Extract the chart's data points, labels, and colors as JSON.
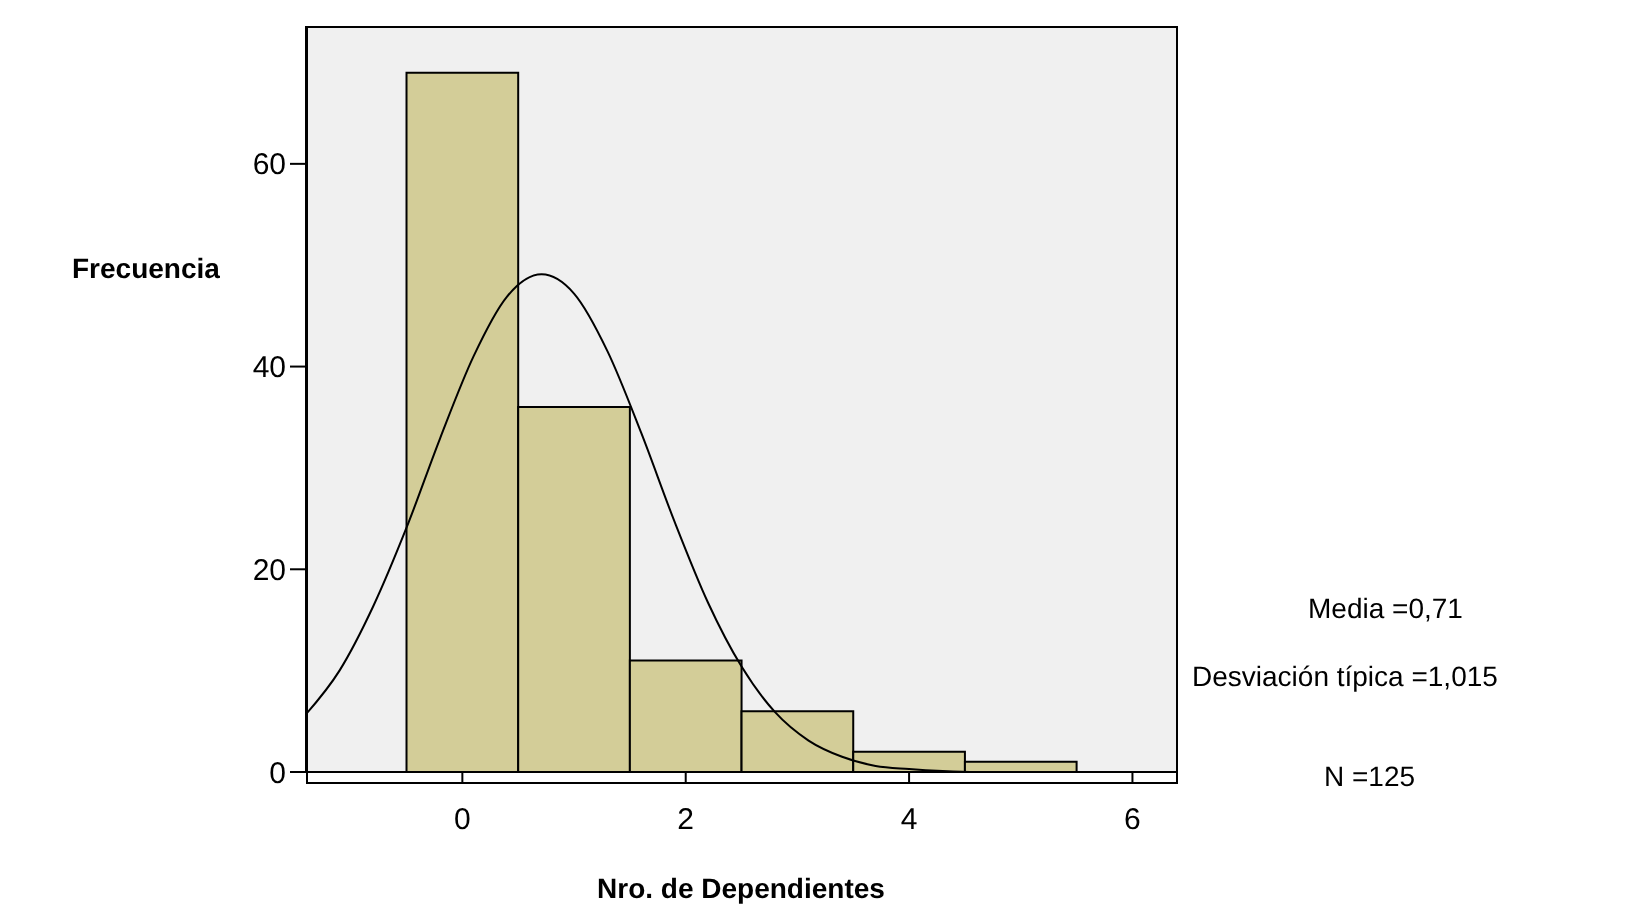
{
  "chart_data": {
    "type": "histogram",
    "xlabel": "Nro. de Dependientes",
    "ylabel": "Frecuencia",
    "bins": [
      -0.5,
      0.5,
      1.5,
      2.5,
      3.5,
      4.5,
      5.5
    ],
    "values": [
      69,
      36,
      11,
      6,
      2,
      1
    ],
    "color": "#d3cd98",
    "series": [
      {
        "type": "line",
        "color": "#000000",
        "x": [
          -1.4,
          -1.1,
          -0.8,
          -0.5,
          -0.2,
          0.1,
          0.4,
          0.71,
          1.0,
          1.3,
          1.6,
          1.9,
          2.2,
          2.5,
          2.8,
          3.1,
          3.4,
          3.7,
          4.0,
          4.3,
          4.6,
          5.0,
          6.39
        ],
        "values": [
          5.7,
          10.0,
          16.3,
          24.1,
          32.9,
          41.0,
          46.9,
          49.1,
          47.2,
          41.5,
          33.5,
          24.7,
          16.7,
          10.4,
          5.9,
          3.1,
          1.5,
          0.6,
          0.3,
          0.1,
          0,
          0,
          0
        ]
      }
    ],
    "xlim": [
      -1.4,
      6.39
    ],
    "xticks": [
      0,
      2,
      4,
      6
    ],
    "ylim": [
      0,
      73.6
    ],
    "yticks": [
      0,
      20,
      40,
      60
    ],
    "grid": false,
    "marker": "none",
    "line_style": "solid",
    "annotations": [
      "Media =0,71",
      "Desviación típica =1,015",
      "N =125"
    ]
  }
}
